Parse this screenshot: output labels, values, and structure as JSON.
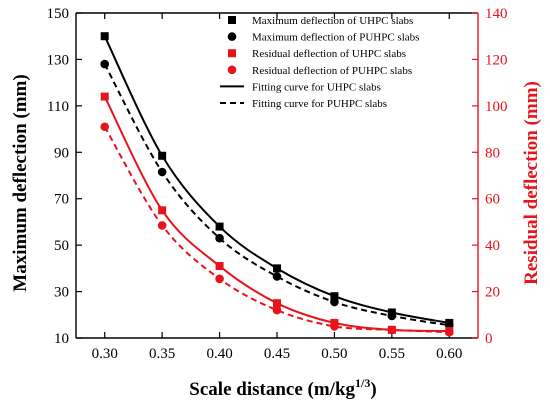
{
  "chart_data": {
    "type": "scatter",
    "xlabel_main": "Scale distance (m/kg",
    "xlabel_sup": "1/3",
    "xlabel_end": ")",
    "ylabel": "Maximum deflection (mm)",
    "y2label": "Residual deflection (mm)",
    "xlim": [
      0.275,
      0.625
    ],
    "ylim": [
      10,
      150
    ],
    "y2lim": [
      0,
      140
    ],
    "x_ticks": [
      "0.30",
      "0.35",
      "0.40",
      "0.45",
      "0.50",
      "0.55",
      "0.60"
    ],
    "x_tick_values": [
      0.3,
      0.35,
      0.4,
      0.45,
      0.5,
      0.55,
      0.6
    ],
    "y_ticks": [
      "10",
      "30",
      "50",
      "70",
      "90",
      "110",
      "130",
      "150"
    ],
    "y_tick_values": [
      10,
      30,
      50,
      70,
      90,
      110,
      130,
      150
    ],
    "y2_ticks": [
      "0",
      "20",
      "40",
      "60",
      "80",
      "100",
      "120",
      "140"
    ],
    "y2_tick_values": [
      0,
      20,
      40,
      60,
      80,
      100,
      120,
      140
    ],
    "legend_position": "top-right",
    "colors": {
      "black": "#000000",
      "red": "#e8141b"
    },
    "x": [
      0.3,
      0.35,
      0.4,
      0.45,
      0.5,
      0.55,
      0.6
    ],
    "series": [
      {
        "name": "Maximum deflection of UHPC slabs",
        "axis": "left",
        "color": "#000000",
        "marker": "square",
        "values": [
          140,
          88.5,
          58,
          40,
          28,
          21,
          16.5
        ]
      },
      {
        "name": "Maximum deflection of PUHPC slabs",
        "axis": "left",
        "color": "#000000",
        "marker": "circle",
        "values": [
          128,
          81.5,
          53,
          36.5,
          25.5,
          19.5,
          15.5
        ]
      },
      {
        "name": "Residual deflection of UHPC slabs",
        "axis": "right",
        "color": "#e8141b",
        "marker": "square",
        "values": [
          104,
          55,
          31,
          15,
          6.5,
          3.5,
          3
        ]
      },
      {
        "name": "Residual deflection of PUHPC slabs",
        "axis": "right",
        "color": "#e8141b",
        "marker": "circle",
        "values": [
          91,
          48.5,
          25.5,
          12,
          5,
          3.5,
          2.5
        ]
      }
    ],
    "fits": [
      {
        "name": "Fitting curve for UHPC slabs",
        "dash": "solid",
        "color": "#000000",
        "axis": "left",
        "values": [
          140,
          88.5,
          58,
          40,
          28,
          21,
          16.5
        ]
      },
      {
        "name": "Fitting curve for PUHPC slabs",
        "dash": "dashed",
        "color": "#000000",
        "axis": "left",
        "values": [
          128,
          81.5,
          53,
          36.5,
          25.5,
          19.5,
          15.5
        ]
      },
      {
        "dash": "solid",
        "color": "#e8141b",
        "axis": "right",
        "values": [
          104,
          55,
          31,
          15,
          6.5,
          3.5,
          3
        ]
      },
      {
        "dash": "dashed",
        "color": "#e8141b",
        "axis": "right",
        "values": [
          91,
          48.5,
          25.5,
          12,
          5,
          3.5,
          2.5
        ]
      }
    ]
  }
}
